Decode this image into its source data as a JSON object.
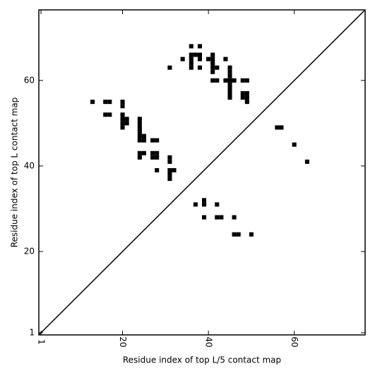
{
  "chart_data": {
    "type": "scatter",
    "x_label": "Residue index of top L/5 contact map",
    "y_label": "Residue index of top L contact map",
    "xlim": [
      0.5,
      76.5
    ],
    "ylim": [
      0.5,
      76.5
    ],
    "xticks": [
      1,
      20,
      40,
      60
    ],
    "yticks": [
      1,
      20,
      40,
      60
    ],
    "diagonal": true,
    "marker": "square",
    "series": [
      {
        "color": "#000000",
        "x": [
          13,
          16,
          17,
          16,
          17,
          20,
          20,
          20,
          20,
          20,
          20,
          21,
          21,
          24,
          24,
          24,
          24,
          24,
          24,
          25,
          25,
          27,
          28,
          24,
          25,
          24,
          27,
          28,
          27,
          28,
          28,
          31,
          31,
          31,
          32,
          31,
          31,
          31,
          34,
          36,
          38,
          36,
          37,
          38,
          36,
          36,
          36,
          38,
          38,
          40,
          41,
          41,
          41,
          41,
          41,
          42,
          41,
          42,
          44,
          45,
          45,
          45,
          45,
          45,
          45,
          45,
          45,
          44,
          46,
          48,
          49,
          48,
          49,
          48,
          49,
          49,
          56,
          57,
          60,
          63
        ],
        "y": [
          55,
          55,
          55,
          52,
          52,
          55,
          54,
          52,
          51,
          50,
          49,
          51,
          50,
          51,
          50,
          49,
          48,
          47,
          46,
          47,
          46,
          46,
          46,
          43,
          43,
          42,
          43,
          43,
          42,
          42,
          39,
          42,
          41,
          39,
          39,
          38,
          37,
          63,
          65,
          68,
          68,
          66,
          66,
          66,
          65,
          64,
          63,
          65,
          63,
          65,
          66,
          65,
          64,
          63,
          62,
          63,
          60,
          60,
          65,
          63,
          62,
          61,
          60,
          59,
          58,
          57,
          56,
          60,
          60,
          60,
          60,
          57,
          57,
          56,
          56,
          55,
          49,
          49,
          45,
          41
        ]
      },
      {
        "color": "#000000",
        "x": [
          37,
          39,
          39,
          42,
          39,
          42,
          43,
          46,
          46,
          47,
          50
        ],
        "y": [
          31,
          32,
          31,
          31,
          28,
          28,
          28,
          28,
          24,
          24,
          24
        ]
      }
    ]
  }
}
